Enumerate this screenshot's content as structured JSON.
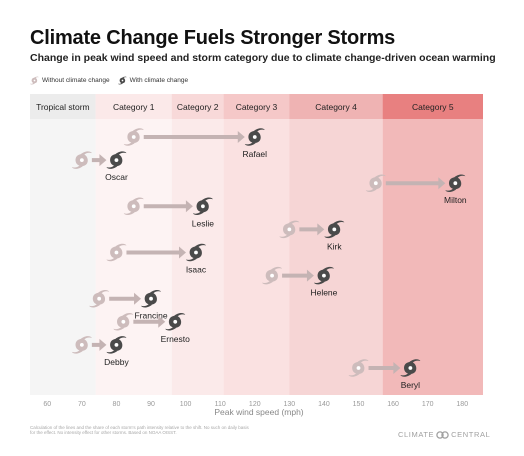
{
  "header": {
    "title": "Climate Change Fuels Stronger Storms",
    "subtitle": "Change in peak wind speed and storm category due to climate change-driven ocean warming"
  },
  "legend": {
    "without_label": "Without climate change",
    "with_label": "With climate change"
  },
  "footnote": {
    "text": "Calculation of the lines and the share of each storm's path intensity relative to the shift. No such on daily basis for the effect. No intensity effect for other storms. Based on NOAA OISST."
  },
  "brand": {
    "left": "CLIMATE",
    "right": "CENTRAL",
    "icon": "climate-central-logo-icon"
  },
  "colors": {
    "arrow": "#c4b3b3",
    "storm_with": "#4a4a4a",
    "storm_without": "#cdbcbc",
    "label": "#222222"
  },
  "chart_data": {
    "type": "range-arrow",
    "title": "Climate Change Fuels Stronger Storms",
    "subtitle": "Change in peak wind speed and storm category due to climate change-driven ocean warming",
    "xlabel": "Peak wind speed (mph)",
    "xlim": [
      55,
      186
    ],
    "x_ticks": [
      60,
      70,
      80,
      90,
      100,
      110,
      120,
      130,
      140,
      150,
      160,
      170,
      180
    ],
    "bands": [
      {
        "label": "Tropical storm",
        "from": 55,
        "to": 74,
        "color": "#ececec"
      },
      {
        "label": "Category 1",
        "from": 74,
        "to": 96,
        "color": "#fbe9e9"
      },
      {
        "label": "Category 2",
        "from": 96,
        "to": 111,
        "color": "#f8d9d9"
      },
      {
        "label": "Category 3",
        "from": 111,
        "to": 130,
        "color": "#f5c8c8"
      },
      {
        "label": "Category 4",
        "from": 130,
        "to": 157,
        "color": "#efb3b3"
      },
      {
        "label": "Category 5",
        "from": 157,
        "to": 186,
        "color": "#e88080"
      }
    ],
    "storms": [
      {
        "name": "Rafael",
        "without": 85,
        "with": 120
      },
      {
        "name": "Oscar",
        "without": 70,
        "with": 80
      },
      {
        "name": "Milton",
        "without": 155,
        "with": 178
      },
      {
        "name": "Leslie",
        "without": 85,
        "with": 105
      },
      {
        "name": "Kirk",
        "without": 130,
        "with": 143
      },
      {
        "name": "Isaac",
        "without": 80,
        "with": 103
      },
      {
        "name": "Helene",
        "without": 125,
        "with": 140
      },
      {
        "name": "Francine",
        "without": 75,
        "with": 90
      },
      {
        "name": "Ernesto",
        "without": 82,
        "with": 97
      },
      {
        "name": "Debby",
        "without": 70,
        "with": 80
      },
      {
        "name": "Beryl",
        "without": 150,
        "with": 165
      }
    ]
  }
}
